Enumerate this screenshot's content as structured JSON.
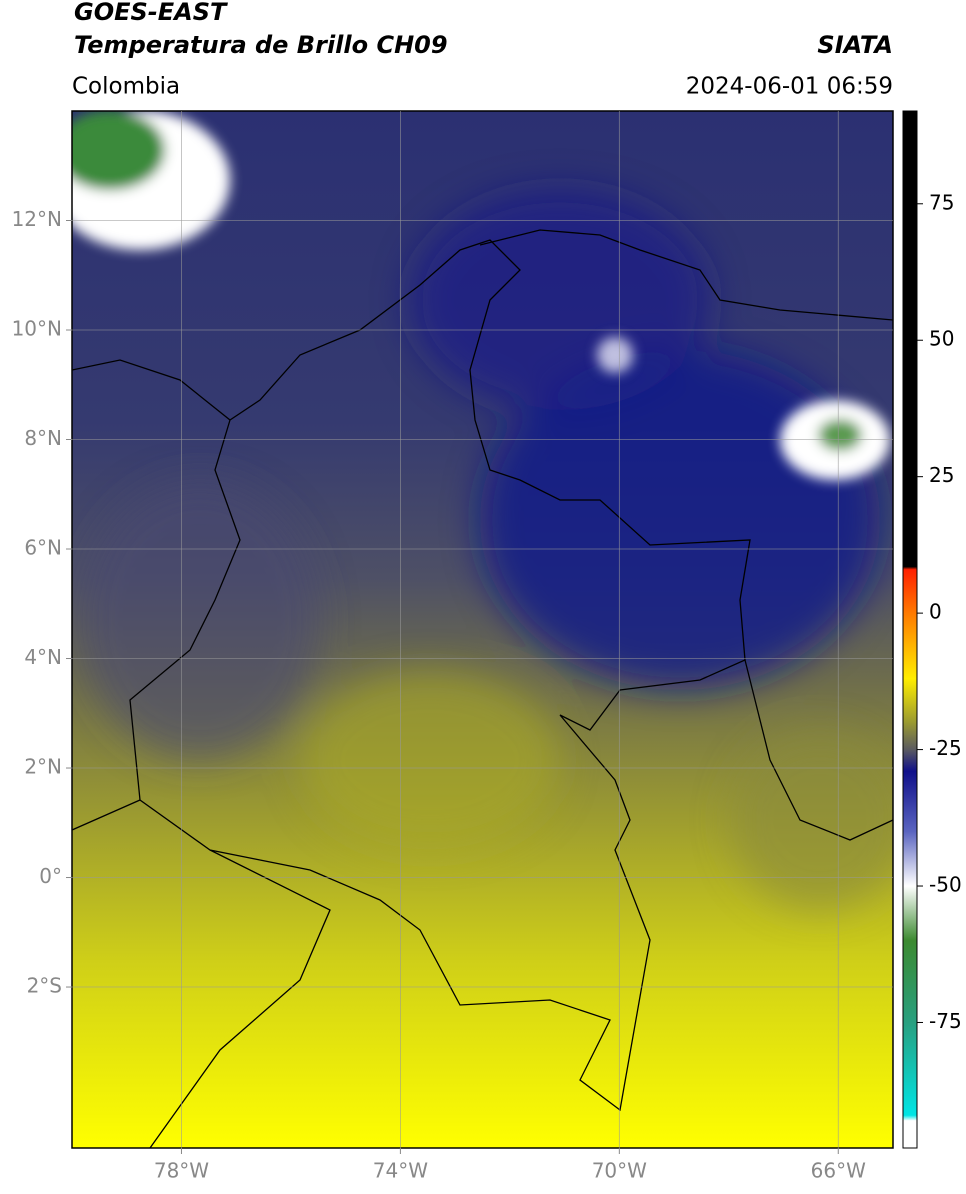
{
  "header": {
    "title": "GOES-EAST",
    "subtitle": "Temperatura de Brillo CH09",
    "source": "SIATA",
    "region": "Colombia",
    "datetime": "2024-06-01 06:59"
  },
  "map": {
    "xlim": [
      -80,
      -65
    ],
    "ylim": [
      -4.94,
      14
    ],
    "xticks": [
      {
        "value": -78,
        "label": "78°W"
      },
      {
        "value": -74,
        "label": "74°W"
      },
      {
        "value": -70,
        "label": "70°W"
      },
      {
        "value": -66,
        "label": "66°W"
      }
    ],
    "yticks": [
      {
        "value": 12,
        "label": "12°N"
      },
      {
        "value": 10,
        "label": "10°N"
      },
      {
        "value": 8,
        "label": "8°N"
      },
      {
        "value": 6,
        "label": "6°N"
      },
      {
        "value": 4,
        "label": "4°N"
      },
      {
        "value": 2,
        "label": "2°N"
      },
      {
        "value": 0,
        "label": "0°"
      },
      {
        "value": -2,
        "label": "2°S"
      }
    ],
    "grid": true
  },
  "colorbar": {
    "lim": [
      -98,
      92
    ],
    "ticks": [
      75,
      50,
      25,
      0,
      -25,
      -50,
      -75
    ],
    "stops": [
      {
        "value": 92,
        "color": "#000000"
      },
      {
        "value": 8.5,
        "color": "#000000"
      },
      {
        "value": 8,
        "color": "#ff2000"
      },
      {
        "value": 0,
        "color": "#ff7a00"
      },
      {
        "value": -12,
        "color": "#ffee00"
      },
      {
        "value": -20,
        "color": "#9a9a30"
      },
      {
        "value": -25,
        "color": "#5a5a60"
      },
      {
        "value": -29,
        "color": "#10108a"
      },
      {
        "value": -40,
        "color": "#5a64c0"
      },
      {
        "value": -50,
        "color": "#ffffff"
      },
      {
        "value": -60,
        "color": "#3c8a30"
      },
      {
        "value": -75,
        "color": "#28a080"
      },
      {
        "value": -92,
        "color": "#00e5e5"
      },
      {
        "value": -93,
        "color": "#ffffff"
      },
      {
        "value": -98,
        "color": "#ffffff"
      }
    ]
  }
}
